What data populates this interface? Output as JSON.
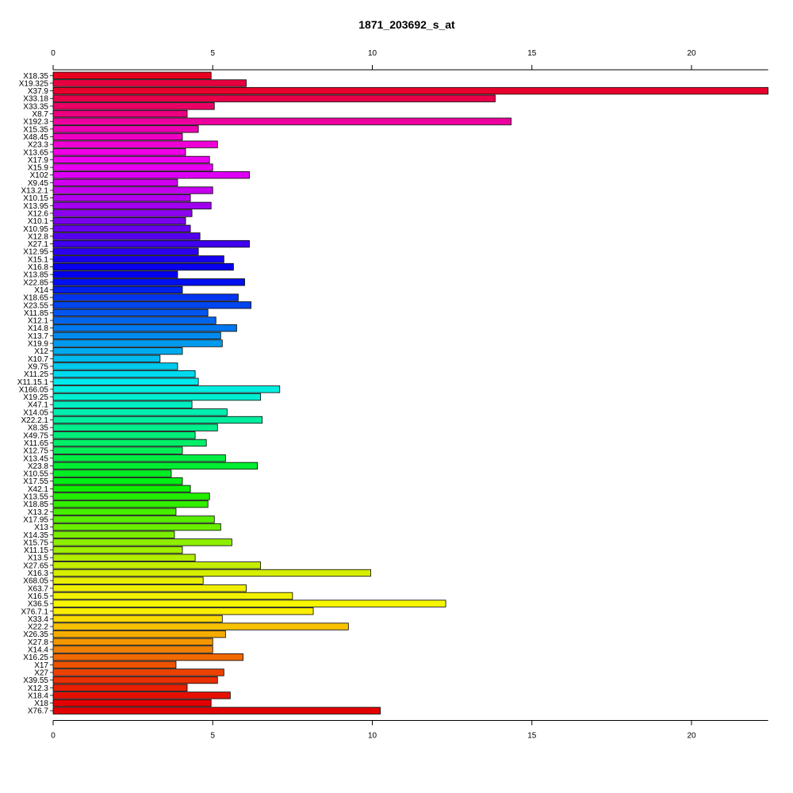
{
  "chart_data": {
    "type": "bar",
    "orientation": "horizontal",
    "title": "1871_203692_s_at",
    "xlabel": "",
    "ylabel": "",
    "xlim": [
      0,
      22.4
    ],
    "xticks": [
      0,
      5,
      10,
      15,
      20
    ],
    "grid": false,
    "legend": "none",
    "categories": [
      "X18.35",
      "X19.325",
      "X37.9",
      "X33.18",
      "X33.35",
      "X8.7",
      "X192.3",
      "X15.35",
      "X48.45",
      "X23.3",
      "X13.65",
      "X17.9",
      "X15.9",
      "X102",
      "X9.45",
      "X13.2.1",
      "X10.15",
      "X13.95",
      "X12.6",
      "X10.1",
      "X10.95",
      "X12.8",
      "X27.1",
      "X12.95",
      "X15.1",
      "X16.8",
      "X13.85",
      "X22.85",
      "X14",
      "X18.65",
      "X23.55",
      "X11.85",
      "X12.1",
      "X14.8",
      "X13.7",
      "X19.9",
      "X12",
      "X10.7",
      "X9.75",
      "X11.25",
      "X11.15.1",
      "X166.05",
      "X19.25",
      "X47.1",
      "X14.05",
      "X22.2.1",
      "X8.35",
      "X49.75",
      "X11.65",
      "X12.75",
      "X13.45",
      "X23.8",
      "X10.55",
      "X17.55",
      "X42.1",
      "X13.55",
      "X18.85",
      "X13.2",
      "X17.95",
      "X13",
      "X14.35",
      "X15.75",
      "X11.15",
      "X13.5",
      "X27.65",
      "X16.3",
      "X68.05",
      "X63.7",
      "X16.5",
      "X36.5",
      "X76.7.1",
      "X33.4",
      "X22.2",
      "X26.35",
      "X27.8",
      "X14.4",
      "X16.25",
      "X17",
      "X27",
      "X39.55",
      "X12.3",
      "X18.4",
      "X18",
      "X76.7"
    ],
    "values": [
      4.95,
      6.05,
      22.4,
      13.85,
      5.05,
      4.2,
      14.35,
      4.55,
      4.05,
      5.15,
      4.15,
      4.9,
      5.0,
      6.15,
      3.9,
      5.0,
      4.3,
      4.95,
      4.35,
      4.15,
      4.3,
      4.6,
      6.15,
      4.55,
      5.35,
      5.65,
      3.9,
      6.0,
      4.05,
      5.8,
      6.2,
      4.85,
      5.1,
      5.75,
      5.25,
      5.3,
      4.05,
      3.35,
      3.9,
      4.45,
      4.55,
      7.1,
      6.5,
      4.35,
      5.45,
      6.55,
      5.15,
      4.45,
      4.8,
      4.05,
      5.4,
      6.4,
      3.7,
      4.05,
      4.3,
      4.9,
      4.85,
      3.85,
      5.05,
      5.25,
      3.8,
      5.6,
      4.05,
      4.45,
      6.5,
      9.95,
      4.7,
      6.05,
      7.5,
      12.3,
      8.15,
      5.3,
      9.25,
      5.4,
      5.0,
      5.0,
      5.95,
      3.85,
      5.35,
      5.15,
      4.2,
      5.55,
      4.95,
      10.25
    ],
    "colors": [
      "#E8001E",
      "#E6003F",
      "#E8002C",
      "#E9004A",
      "#EA0064",
      "#EB0082",
      "#EC009E",
      "#EC00B2",
      "#EF00C3",
      "#EE00D6",
      "#F000E8",
      "#EC00F0",
      "#E800F2",
      "#DE00F5",
      "#D000F0",
      "#C400EE",
      "#B400EF",
      "#A000EE",
      "#8C00EE",
      "#7A00EE",
      "#6800EE",
      "#5400EE",
      "#4000EE",
      "#2C00EE",
      "#1800EE",
      "#0800EE",
      "#0000EE",
      "#0010EE",
      "#0020EE",
      "#0034EE",
      "#0046EE",
      "#0056EE",
      "#0066EE",
      "#0078EE",
      "#008AEE",
      "#009AEE",
      "#00AAEE",
      "#00BAEE",
      "#00CAEE",
      "#00DAEE",
      "#00EAEE",
      "#00EEE0",
      "#00EED0",
      "#00EEC0",
      "#00EEAE",
      "#00EE9E",
      "#00EE8C",
      "#00EE7A",
      "#00EE68",
      "#00EE56",
      "#00EE44",
      "#00EE32",
      "#00EE22",
      "#00EE14",
      "#10EE00",
      "#22EE00",
      "#34EE00",
      "#46EE00",
      "#58EE00",
      "#6AEE00",
      "#7CEE00",
      "#8EEE00",
      "#A0EE00",
      "#B2EE00",
      "#C4EE00",
      "#D6EE00",
      "#E8EE00",
      "#EEEE00",
      "#F2F200",
      "#F6F600",
      "#FAEE00",
      "#FAD800",
      "#F8C200",
      "#F6AC00",
      "#F49600",
      "#F28000",
      "#F06A00",
      "#EE5400",
      "#EC4200",
      "#EA3000",
      "#E82000",
      "#E61000",
      "#E40000",
      "#E20000"
    ]
  }
}
